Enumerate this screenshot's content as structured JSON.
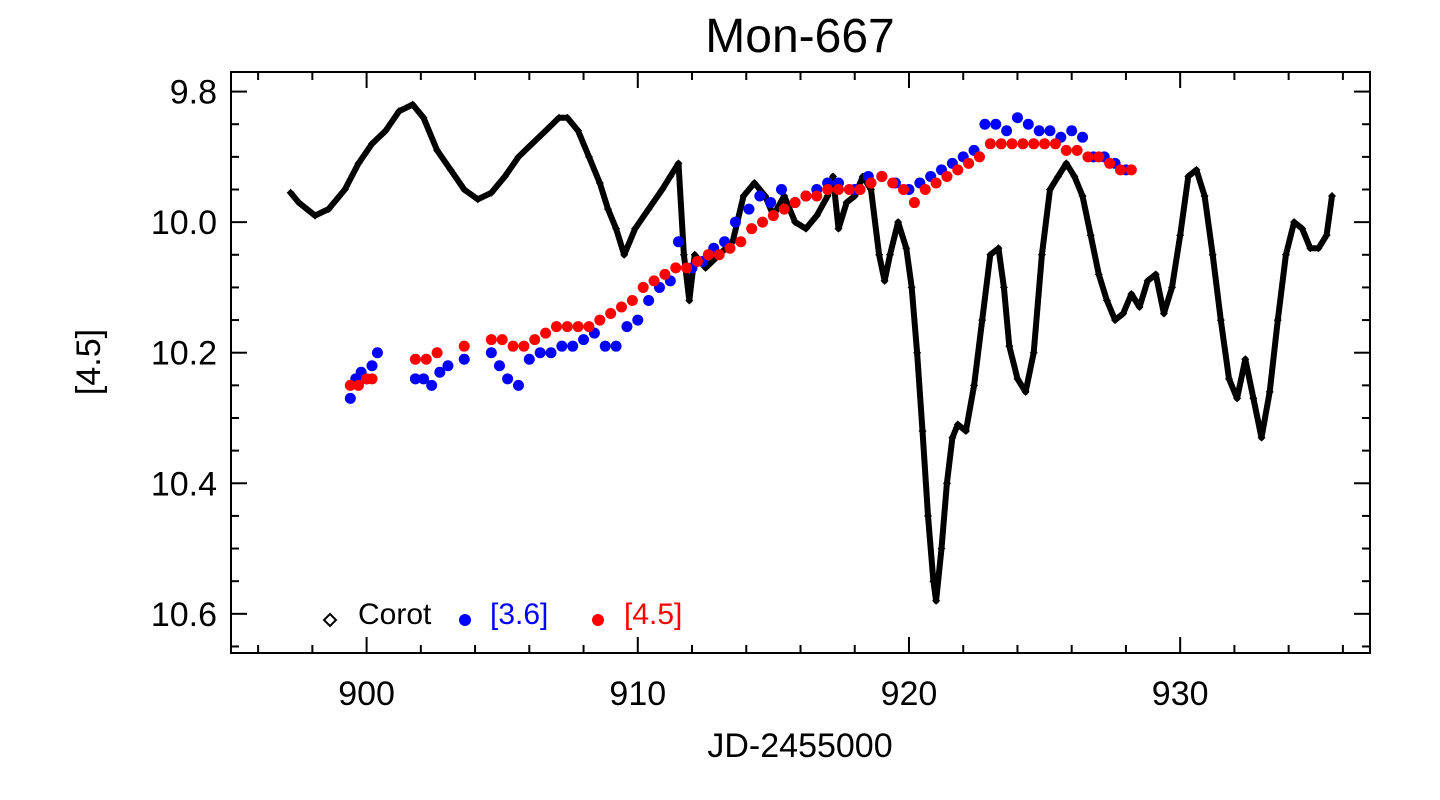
{
  "chart_data": {
    "type": "scatter",
    "title": "Mon-667",
    "xlabel": "JD-2455000",
    "ylabel": "[4.5]",
    "xlim": [
      895,
      937
    ],
    "ylim": [
      10.66,
      9.77
    ],
    "y_inverted": true,
    "x_ticks": [
      900,
      910,
      920,
      930
    ],
    "x_tick_labels": [
      "900",
      "910",
      "920",
      "930"
    ],
    "y_ticks": [
      9.8,
      10.0,
      10.2,
      10.4,
      10.6
    ],
    "y_tick_labels": [
      "9.8",
      "10.0",
      "10.2",
      "10.4",
      "10.6"
    ],
    "legend": {
      "placement": "bottom-left",
      "entries": [
        {
          "label": "Corot",
          "marker": "diamond",
          "color": "#000000"
        },
        {
          "label": "[3.6]",
          "marker": "circle",
          "color": "#0000ff"
        },
        {
          "label": "[4.5]",
          "marker": "circle",
          "color": "#ff0000"
        }
      ]
    },
    "series": [
      {
        "name": "Corot",
        "color": "#000000",
        "marker": "diamond",
        "points": [
          [
            897.2,
            9.955
          ],
          [
            897.5,
            9.97
          ],
          [
            898.1,
            9.99
          ],
          [
            898.6,
            9.98
          ],
          [
            899.2,
            9.95
          ],
          [
            899.7,
            9.91
          ],
          [
            900.2,
            9.88
          ],
          [
            900.7,
            9.86
          ],
          [
            901.2,
            9.83
          ],
          [
            901.7,
            9.82
          ],
          [
            902.1,
            9.84
          ],
          [
            902.6,
            9.89
          ],
          [
            903.1,
            9.92
          ],
          [
            903.6,
            9.95
          ],
          [
            904.1,
            9.965
          ],
          [
            904.6,
            9.955
          ],
          [
            905.1,
            9.93
          ],
          [
            905.6,
            9.9
          ],
          [
            906.1,
            9.88
          ],
          [
            906.6,
            9.86
          ],
          [
            907.1,
            9.84
          ],
          [
            907.4,
            9.84
          ],
          [
            907.8,
            9.86
          ],
          [
            908.2,
            9.9
          ],
          [
            908.6,
            9.94
          ],
          [
            908.9,
            9.98
          ],
          [
            909.2,
            10.01
          ],
          [
            909.5,
            10.05
          ],
          [
            909.9,
            10.01
          ],
          [
            910.4,
            9.98
          ],
          [
            910.9,
            9.95
          ],
          [
            911.2,
            9.93
          ],
          [
            911.5,
            9.91
          ],
          [
            911.7,
            10.05
          ],
          [
            911.9,
            10.12
          ],
          [
            912.1,
            10.05
          ],
          [
            912.5,
            10.07
          ],
          [
            913.0,
            10.05
          ],
          [
            913.5,
            10.03
          ],
          [
            913.9,
            9.96
          ],
          [
            914.3,
            9.94
          ],
          [
            914.7,
            9.96
          ],
          [
            915.0,
            9.99
          ],
          [
            915.4,
            9.96
          ],
          [
            915.8,
            10.0
          ],
          [
            916.2,
            10.01
          ],
          [
            916.6,
            9.99
          ],
          [
            917.0,
            9.96
          ],
          [
            917.2,
            9.93
          ],
          [
            917.4,
            10.01
          ],
          [
            917.7,
            9.97
          ],
          [
            918.0,
            9.96
          ],
          [
            918.3,
            9.93
          ],
          [
            918.6,
            9.95
          ],
          [
            918.9,
            10.05
          ],
          [
            919.1,
            10.09
          ],
          [
            919.3,
            10.05
          ],
          [
            919.6,
            10.0
          ],
          [
            919.9,
            10.04
          ],
          [
            920.1,
            10.1
          ],
          [
            920.3,
            10.2
          ],
          [
            920.5,
            10.32
          ],
          [
            920.7,
            10.45
          ],
          [
            920.9,
            10.55
          ],
          [
            921.0,
            10.58
          ],
          [
            921.2,
            10.5
          ],
          [
            921.4,
            10.4
          ],
          [
            921.6,
            10.33
          ],
          [
            921.8,
            10.31
          ],
          [
            922.1,
            10.32
          ],
          [
            922.4,
            10.25
          ],
          [
            922.7,
            10.15
          ],
          [
            923.0,
            10.05
          ],
          [
            923.3,
            10.04
          ],
          [
            923.5,
            10.1
          ],
          [
            923.7,
            10.19
          ],
          [
            924.0,
            10.24
          ],
          [
            924.3,
            10.26
          ],
          [
            924.6,
            10.2
          ],
          [
            924.9,
            10.05
          ],
          [
            925.2,
            9.95
          ],
          [
            925.5,
            9.93
          ],
          [
            925.8,
            9.91
          ],
          [
            926.1,
            9.93
          ],
          [
            926.4,
            9.96
          ],
          [
            926.7,
            10.02
          ],
          [
            927.0,
            10.08
          ],
          [
            927.3,
            10.12
          ],
          [
            927.6,
            10.15
          ],
          [
            927.9,
            10.14
          ],
          [
            928.2,
            10.11
          ],
          [
            928.5,
            10.13
          ],
          [
            928.8,
            10.09
          ],
          [
            929.1,
            10.08
          ],
          [
            929.4,
            10.14
          ],
          [
            929.7,
            10.1
          ],
          [
            930.0,
            10.02
          ],
          [
            930.3,
            9.93
          ],
          [
            930.6,
            9.92
          ],
          [
            930.9,
            9.96
          ],
          [
            931.2,
            10.05
          ],
          [
            931.5,
            10.15
          ],
          [
            931.8,
            10.24
          ],
          [
            932.1,
            10.27
          ],
          [
            932.4,
            10.21
          ],
          [
            932.7,
            10.27
          ],
          [
            933.0,
            10.33
          ],
          [
            933.3,
            10.26
          ],
          [
            933.6,
            10.15
          ],
          [
            933.9,
            10.05
          ],
          [
            934.2,
            10.0
          ],
          [
            934.5,
            10.01
          ],
          [
            934.8,
            10.04
          ],
          [
            935.1,
            10.04
          ],
          [
            935.4,
            10.02
          ],
          [
            935.6,
            9.96
          ]
        ]
      },
      {
        "name": "[3.6]",
        "color": "#0000ff",
        "marker": "circle",
        "points": [
          [
            899.4,
            10.27
          ],
          [
            899.6,
            10.24
          ],
          [
            899.8,
            10.23
          ],
          [
            900.0,
            10.24
          ],
          [
            900.2,
            10.22
          ],
          [
            900.4,
            10.2
          ],
          [
            901.8,
            10.24
          ],
          [
            902.1,
            10.24
          ],
          [
            902.4,
            10.25
          ],
          [
            902.7,
            10.23
          ],
          [
            903.0,
            10.22
          ],
          [
            903.6,
            10.21
          ],
          [
            904.6,
            10.2
          ],
          [
            904.9,
            10.22
          ],
          [
            905.2,
            10.24
          ],
          [
            905.6,
            10.25
          ],
          [
            906.0,
            10.21
          ],
          [
            906.4,
            10.2
          ],
          [
            906.8,
            10.2
          ],
          [
            907.2,
            10.19
          ],
          [
            907.6,
            10.19
          ],
          [
            908.0,
            10.18
          ],
          [
            908.4,
            10.17
          ],
          [
            908.8,
            10.19
          ],
          [
            909.2,
            10.19
          ],
          [
            909.6,
            10.16
          ],
          [
            910.0,
            10.15
          ],
          [
            910.4,
            10.12
          ],
          [
            910.8,
            10.1
          ],
          [
            911.2,
            10.09
          ],
          [
            911.5,
            10.03
          ],
          [
            912.0,
            10.07
          ],
          [
            912.4,
            10.06
          ],
          [
            912.8,
            10.04
          ],
          [
            913.2,
            10.03
          ],
          [
            913.6,
            10.0
          ],
          [
            914.1,
            9.98
          ],
          [
            914.5,
            9.96
          ],
          [
            914.9,
            9.97
          ],
          [
            915.3,
            9.95
          ],
          [
            915.8,
            9.97
          ],
          [
            916.2,
            9.96
          ],
          [
            916.6,
            9.95
          ],
          [
            917.0,
            9.94
          ],
          [
            917.4,
            9.94
          ],
          [
            918.0,
            9.95
          ],
          [
            918.5,
            9.93
          ],
          [
            919.0,
            9.93
          ],
          [
            919.5,
            9.94
          ],
          [
            920.0,
            9.95
          ],
          [
            920.4,
            9.94
          ],
          [
            920.8,
            9.93
          ],
          [
            921.2,
            9.92
          ],
          [
            921.6,
            9.91
          ],
          [
            922.0,
            9.9
          ],
          [
            922.4,
            9.89
          ],
          [
            922.8,
            9.85
          ],
          [
            923.2,
            9.85
          ],
          [
            923.6,
            9.86
          ],
          [
            924.0,
            9.84
          ],
          [
            924.4,
            9.85
          ],
          [
            924.8,
            9.86
          ],
          [
            925.2,
            9.86
          ],
          [
            925.6,
            9.87
          ],
          [
            926.0,
            9.86
          ],
          [
            926.4,
            9.87
          ],
          [
            926.8,
            9.9
          ],
          [
            927.2,
            9.9
          ],
          [
            927.6,
            9.91
          ],
          [
            928.0,
            9.92
          ]
        ]
      },
      {
        "name": "[4.5]",
        "color": "#ff0000",
        "marker": "circle",
        "points": [
          [
            899.4,
            10.25
          ],
          [
            899.7,
            10.25
          ],
          [
            900.0,
            10.24
          ],
          [
            900.2,
            10.24
          ],
          [
            901.8,
            10.21
          ],
          [
            902.2,
            10.21
          ],
          [
            902.6,
            10.2
          ],
          [
            903.6,
            10.19
          ],
          [
            904.6,
            10.18
          ],
          [
            905.0,
            10.18
          ],
          [
            905.4,
            10.19
          ],
          [
            905.8,
            10.19
          ],
          [
            906.2,
            10.18
          ],
          [
            906.6,
            10.17
          ],
          [
            907.0,
            10.16
          ],
          [
            907.4,
            10.16
          ],
          [
            907.8,
            10.16
          ],
          [
            908.2,
            10.16
          ],
          [
            908.6,
            10.15
          ],
          [
            909.0,
            10.14
          ],
          [
            909.4,
            10.13
          ],
          [
            909.8,
            10.12
          ],
          [
            910.2,
            10.1
          ],
          [
            910.6,
            10.09
          ],
          [
            911.0,
            10.08
          ],
          [
            911.4,
            10.07
          ],
          [
            911.8,
            10.07
          ],
          [
            912.2,
            10.06
          ],
          [
            912.6,
            10.05
          ],
          [
            913.0,
            10.05
          ],
          [
            913.4,
            10.04
          ],
          [
            913.8,
            10.03
          ],
          [
            914.2,
            10.01
          ],
          [
            914.6,
            10.0
          ],
          [
            915.0,
            9.99
          ],
          [
            915.4,
            9.98
          ],
          [
            915.8,
            9.97
          ],
          [
            916.2,
            9.96
          ],
          [
            916.6,
            9.96
          ],
          [
            917.0,
            9.95
          ],
          [
            917.4,
            9.95
          ],
          [
            917.8,
            9.95
          ],
          [
            918.2,
            9.95
          ],
          [
            918.6,
            9.94
          ],
          [
            919.0,
            9.93
          ],
          [
            919.4,
            9.94
          ],
          [
            919.8,
            9.95
          ],
          [
            920.2,
            9.97
          ],
          [
            920.6,
            9.95
          ],
          [
            921.0,
            9.94
          ],
          [
            921.4,
            9.93
          ],
          [
            921.8,
            9.92
          ],
          [
            922.2,
            9.91
          ],
          [
            922.6,
            9.9
          ],
          [
            923.0,
            9.88
          ],
          [
            923.4,
            9.88
          ],
          [
            923.8,
            9.88
          ],
          [
            924.2,
            9.88
          ],
          [
            924.6,
            9.88
          ],
          [
            925.0,
            9.88
          ],
          [
            925.4,
            9.88
          ],
          [
            925.8,
            9.89
          ],
          [
            926.2,
            9.89
          ],
          [
            926.6,
            9.9
          ],
          [
            927.0,
            9.9
          ],
          [
            927.4,
            9.91
          ],
          [
            927.8,
            9.92
          ],
          [
            928.2,
            9.92
          ]
        ]
      }
    ]
  }
}
